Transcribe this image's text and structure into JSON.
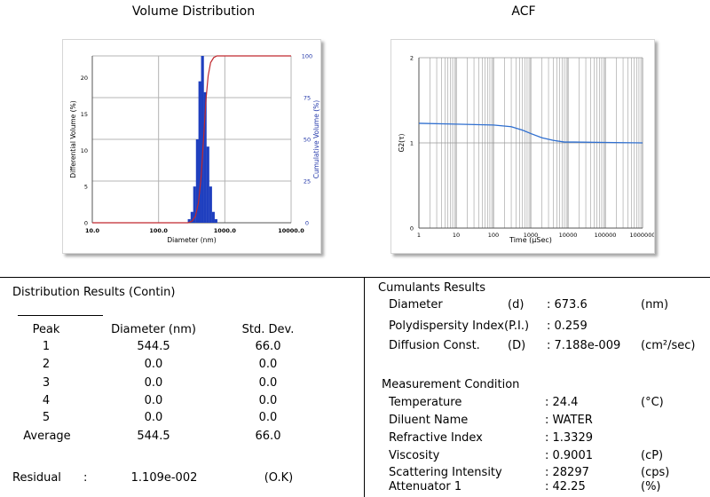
{
  "volume_chart": {
    "title": "Volume Distribution",
    "xlabel": "Diameter (nm)",
    "ylabel_left": "Differential Volume (%)",
    "ylabel_right": "Cumulative Volume (%)",
    "x_ticks": [
      "10.0",
      "100.0",
      "1000.0",
      "10000.0"
    ],
    "y_ticks_left": [
      "0",
      "5",
      "10",
      "15",
      "20"
    ],
    "y_ticks_right": [
      "0",
      "25",
      "50",
      "75",
      "100"
    ],
    "colors": {
      "bars": "#1f3fbf",
      "cumulative": "#c0282d",
      "grid": "#b4b4b4"
    }
  },
  "acf_chart": {
    "title": "ACF",
    "xlabel": "Time (µSec)",
    "ylabel": "G2(τ)",
    "x_ticks": [
      "1",
      "10",
      "100",
      "1000",
      "10000",
      "100000",
      "1000000"
    ],
    "y_ticks": [
      "0",
      "1",
      "2"
    ],
    "colors": {
      "curve": "#2f6fd0",
      "grid": "#888888"
    }
  },
  "chart_data": [
    {
      "type": "bar",
      "title": "Volume Distribution",
      "xlabel": "Diameter (nm)",
      "ylabel": "Differential Volume (%)",
      "xscale": "log",
      "xlim": [
        10,
        10000
      ],
      "ylim": [
        0,
        23
      ],
      "y2lim": [
        0,
        100
      ],
      "grid": true,
      "series": [
        {
          "x": [
            290,
            320,
            350,
            385,
            420,
            460,
            505,
            555,
            610,
            670,
            735
          ],
          "values": [
            0.5,
            1.5,
            5.0,
            11.5,
            19.5,
            23.0,
            18.0,
            10.5,
            5.0,
            1.5,
            0.5
          ]
        }
      ],
      "cumulative": {
        "x": [
          10,
          280,
          320,
          360,
          400,
          440,
          480,
          520,
          560,
          610,
          680,
          760,
          10000
        ],
        "values": [
          0,
          0,
          1,
          4,
          12,
          28,
          52,
          74,
          88,
          96,
          99,
          100,
          100
        ]
      }
    },
    {
      "type": "line",
      "title": "ACF",
      "xlabel": "Time (µSec)",
      "ylabel": "G2(τ)",
      "xscale": "log",
      "xlim": [
        1,
        1000000
      ],
      "ylim": [
        0,
        2
      ],
      "grid": true,
      "series": [
        {
          "x": [
            1,
            10,
            100,
            300,
            600,
            1000,
            2000,
            4000,
            8000,
            15000,
            100000,
            1000000
          ],
          "values": [
            1.23,
            1.22,
            1.21,
            1.19,
            1.15,
            1.11,
            1.06,
            1.03,
            1.01,
            1.01,
            1.005,
            1.0
          ]
        }
      ]
    }
  ],
  "distribution": {
    "title": "Distribution Results (Contin)",
    "headers": [
      "Peak",
      "Diameter (nm)",
      "Std. Dev."
    ],
    "rows": [
      [
        "1",
        "544.5",
        "66.0"
      ],
      [
        "2",
        "0.0",
        "0.0"
      ],
      [
        "3",
        "0.0",
        "0.0"
      ],
      [
        "4",
        "0.0",
        "0.0"
      ],
      [
        "5",
        "0.0",
        "0.0"
      ],
      [
        "Average",
        "544.5",
        "66.0"
      ]
    ],
    "residual": {
      "label": "Residual",
      "colon": ":",
      "value": "1.109e-002",
      "status": "(O.K)"
    }
  },
  "cumulants": {
    "title": "Cumulants Results",
    "rows": [
      {
        "label": "Diameter",
        "sym": "(d)",
        "value": ": 673.6",
        "unit": "(nm)"
      },
      {
        "label": "Polydispersity Index",
        "sym": "(P.I.)",
        "value": ": 0.259",
        "unit": ""
      },
      {
        "label": "Diffusion Const.",
        "sym": "(D)",
        "value": ": 7.188e-009",
        "unit": "(cm²/sec)"
      }
    ]
  },
  "measurement": {
    "title": "Measurement Condition",
    "rows": [
      {
        "label": "Temperature",
        "value": ": 24.4",
        "unit": "(°C)"
      },
      {
        "label": "Diluent Name",
        "value": ": WATER",
        "unit": ""
      },
      {
        "label": "Refractive Index",
        "value": ": 1.3329",
        "unit": ""
      },
      {
        "label": "Viscosity",
        "value": ": 0.9001",
        "unit": "(cP)"
      },
      {
        "label": "Scattering Intensity",
        "value": ": 28297",
        "unit": "(cps)"
      },
      {
        "label": "Attenuator 1",
        "value": ": 42.25",
        "unit": "(%)"
      }
    ]
  }
}
